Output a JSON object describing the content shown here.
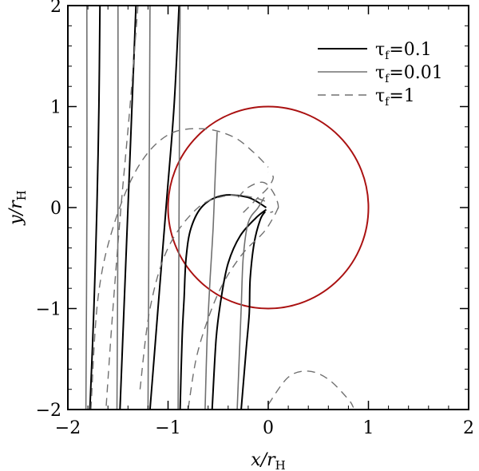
{
  "chart_data": {
    "type": "line",
    "xlim": [
      -2,
      2
    ],
    "ylim": [
      -2,
      2
    ],
    "x_ticks": [
      -2,
      -1,
      0,
      1,
      2
    ],
    "y_ticks": [
      -2,
      -1,
      0,
      1,
      2
    ],
    "x_tick_labels": [
      "−2",
      "−1",
      "0",
      "1",
      "2"
    ],
    "y_tick_labels": [
      "−2",
      "−1",
      "0",
      "1",
      "2"
    ],
    "xlabel": {
      "main": "x/r",
      "sub": "H"
    },
    "ylabel": {
      "main": "y/r",
      "sub": "H"
    },
    "grid": false,
    "legend_position": "top-right",
    "circle": {
      "center": [
        0,
        0
      ],
      "radius": 1,
      "color": "#aa1111"
    },
    "series": [
      {
        "name": "τf=0.1",
        "label_main": "τ",
        "label_sub": "f",
        "label_rest": "=0.1",
        "color": "#000000",
        "style": "solid",
        "lines": [
          [
            [
              -1.68,
              2.0
            ],
            [
              -1.69,
              1.0
            ],
            [
              -1.71,
              0.0
            ],
            [
              -1.74,
              -1.0
            ],
            [
              -1.78,
              -2.0
            ]
          ],
          [
            [
              -1.32,
              2.0
            ],
            [
              -1.36,
              1.0
            ],
            [
              -1.4,
              0.0
            ],
            [
              -1.44,
              -1.0
            ],
            [
              -1.48,
              -2.0
            ]
          ],
          [
            [
              -0.89,
              2.0
            ],
            [
              -0.94,
              1.0
            ],
            [
              -1.02,
              0.0
            ],
            [
              -1.1,
              -1.0
            ],
            [
              -1.18,
              -2.0
            ]
          ],
          [
            [
              -0.02,
              0.0
            ],
            [
              -0.2,
              0.1
            ],
            [
              -0.45,
              0.12
            ],
            [
              -0.65,
              0.02
            ],
            [
              -0.77,
              -0.2
            ],
            [
              -0.82,
              -0.5
            ],
            [
              -0.84,
              -0.9
            ],
            [
              -0.86,
              -1.3
            ],
            [
              -0.88,
              -2.0
            ]
          ],
          [
            [
              -0.02,
              -0.02
            ],
            [
              -0.12,
              -0.1
            ],
            [
              -0.28,
              -0.28
            ],
            [
              -0.4,
              -0.55
            ],
            [
              -0.47,
              -0.9
            ],
            [
              -0.52,
              -1.3
            ],
            [
              -0.56,
              -2.0
            ]
          ],
          [
            [
              -0.03,
              -0.04
            ],
            [
              -0.08,
              -0.12
            ],
            [
              -0.14,
              -0.35
            ],
            [
              -0.18,
              -0.7
            ],
            [
              -0.19,
              -1.05
            ],
            [
              -0.22,
              -1.4
            ],
            [
              -0.27,
              -2.0
            ]
          ]
        ]
      },
      {
        "name": "τf=0.01",
        "label_main": "τ",
        "label_sub": "f",
        "label_rest": "=0.01",
        "color": "#707070",
        "style": "solid",
        "lines": [
          [
            [
              -1.81,
              2.0
            ],
            [
              -1.81,
              0.0
            ],
            [
              -1.82,
              -2.0
            ]
          ],
          [
            [
              -1.5,
              2.0
            ],
            [
              -1.5,
              0.0
            ],
            [
              -1.51,
              -2.0
            ]
          ],
          [
            [
              -1.18,
              2.0
            ],
            [
              -1.19,
              0.0
            ],
            [
              -1.2,
              -2.0
            ]
          ],
          [
            [
              -0.88,
              2.0
            ],
            [
              -0.89,
              0.0
            ],
            [
              -0.9,
              -2.0
            ]
          ],
          [
            [
              -0.51,
              0.75
            ],
            [
              -0.53,
              0.3
            ],
            [
              -0.55,
              -0.2
            ],
            [
              -0.58,
              -0.7
            ],
            [
              -0.61,
              -1.3
            ],
            [
              -0.63,
              -2.0
            ]
          ],
          [
            [
              -0.04,
              0.1
            ],
            [
              -0.1,
              0.0
            ],
            [
              -0.2,
              -0.15
            ],
            [
              -0.25,
              -0.5
            ],
            [
              -0.27,
              -1.0
            ],
            [
              -0.29,
              -1.5
            ],
            [
              -0.31,
              -2.0
            ]
          ]
        ]
      },
      {
        "name": "τf=1",
        "label_main": "τ",
        "label_sub": "f",
        "label_rest": "=1",
        "color": "#707070",
        "style": "dashed",
        "lines": [
          [
            [
              -1.3,
              2.0
            ],
            [
              -1.38,
              1.0
            ],
            [
              -1.47,
              0.0
            ],
            [
              -1.55,
              -1.0
            ],
            [
              -1.62,
              -2.0
            ]
          ],
          [
            [
              -1.77,
              -2.0
            ],
            [
              -1.7,
              -0.9
            ],
            [
              -1.55,
              -0.2
            ],
            [
              -1.3,
              0.4
            ],
            [
              -1.0,
              0.72
            ],
            [
              -0.65,
              0.78
            ],
            [
              -0.35,
              0.7
            ],
            [
              -0.15,
              0.55
            ],
            [
              0.0,
              0.4
            ]
          ],
          [
            [
              -1.28,
              -1.8
            ],
            [
              -1.18,
              -1.0
            ],
            [
              -1.0,
              -0.4
            ],
            [
              -0.7,
              0.0
            ],
            [
              -0.4,
              0.12
            ],
            [
              -0.15,
              0.1
            ],
            [
              0.0,
              0.05
            ]
          ],
          [
            [
              -0.3,
              0.1
            ],
            [
              -0.2,
              0.2
            ],
            [
              -0.05,
              0.25
            ],
            [
              0.05,
              0.15
            ],
            [
              0.1,
              0.0
            ],
            [
              0.02,
              -0.05
            ]
          ],
          [
            [
              -0.25,
              -0.05
            ],
            [
              -0.1,
              0.1
            ],
            [
              0.0,
              0.2
            ],
            [
              0.05,
              0.3
            ],
            [
              0.0,
              0.35
            ]
          ],
          [
            [
              0.1,
              0.0
            ],
            [
              0.05,
              -0.1
            ],
            [
              -0.05,
              -0.25
            ],
            [
              -0.25,
              -0.45
            ],
            [
              -0.45,
              -0.75
            ],
            [
              -0.6,
              -1.1
            ],
            [
              -0.72,
              -1.5
            ],
            [
              -0.8,
              -2.0
            ]
          ],
          [
            [
              0.0,
              -1.95
            ],
            [
              0.2,
              -1.68
            ],
            [
              0.4,
              -1.62
            ],
            [
              0.6,
              -1.7
            ],
            [
              0.8,
              -1.9
            ],
            [
              0.85,
              -1.98
            ]
          ]
        ]
      }
    ]
  }
}
